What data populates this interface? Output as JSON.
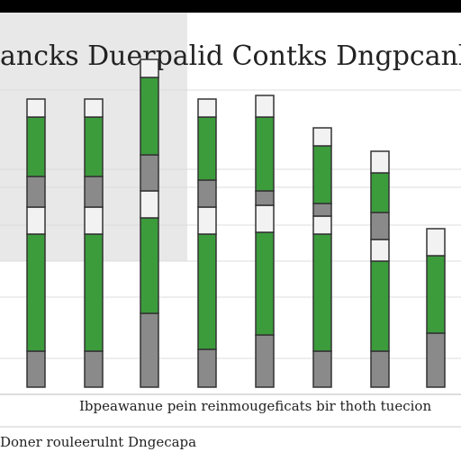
{
  "chart_data": {
    "type": "stacked-bar",
    "title": "ancks Duerpalid Contks Dngpcanler",
    "caption": "Ibpeawanue pein reinmougeficats bir thoth tuecion",
    "footer": "Doner rouleerulnt Dngecapa",
    "ylim": [
      0,
      380
    ],
    "series": [
      {
        "color": "#8a8a8a",
        "values": [
          40,
          40,
          82,
          42,
          58,
          40,
          40,
          60
        ]
      },
      {
        "color": "#3c9c3c",
        "values": [
          130,
          130,
          106,
          128,
          114,
          130,
          100,
          86
        ]
      },
      {
        "color": "#f2f2f2",
        "values": [
          30,
          30,
          30,
          30,
          30,
          20,
          24,
          0
        ]
      },
      {
        "color": "#8a8a8a",
        "values": [
          34,
          34,
          40,
          30,
          16,
          14,
          30,
          0
        ]
      },
      {
        "color": "#3c9c3c",
        "values": [
          66,
          66,
          86,
          70,
          82,
          64,
          44,
          0
        ]
      },
      {
        "color": "#f2f2f2",
        "values": [
          20,
          20,
          20,
          20,
          24,
          20,
          24,
          30
        ]
      }
    ]
  }
}
